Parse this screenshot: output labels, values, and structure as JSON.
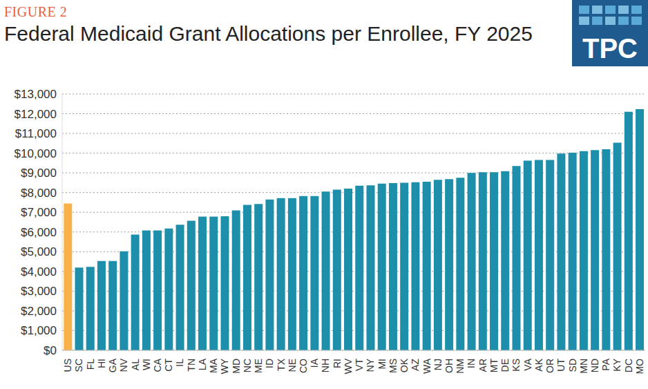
{
  "chart_data": {
    "type": "bar",
    "title": "Federal Medicaid Grant Allocations per Enrollee, FY 2025",
    "annotations": [
      "FIGURE 2",
      "TPC"
    ],
    "categories": [
      "US",
      "SC",
      "FL",
      "HI",
      "GA",
      "NV",
      "AL",
      "WI",
      "CA",
      "CT",
      "IL",
      "TN",
      "LA",
      "MA",
      "WY",
      "MD",
      "NC",
      "ME",
      "ID",
      "TX",
      "NE",
      "CO",
      "IA",
      "NH",
      "RI",
      "WV",
      "VT",
      "NY",
      "MI",
      "MS",
      "OK",
      "AZ",
      "WA",
      "NJ",
      "OH",
      "NM",
      "IN",
      "AR",
      "MT",
      "DE",
      "KS",
      "VA",
      "AK",
      "OR",
      "UT",
      "SD",
      "MN",
      "ND",
      "PA",
      "KY",
      "DC",
      "MO"
    ],
    "values": [
      7450,
      4200,
      4230,
      4530,
      4530,
      5020,
      5870,
      6080,
      6080,
      6180,
      6370,
      6570,
      6780,
      6780,
      6800,
      7100,
      7380,
      7420,
      7650,
      7720,
      7720,
      7820,
      7820,
      8050,
      8150,
      8200,
      8350,
      8370,
      8450,
      8480,
      8500,
      8520,
      8550,
      8650,
      8680,
      8750,
      9000,
      9030,
      9030,
      9080,
      9350,
      9620,
      9650,
      9650,
      9980,
      10020,
      10100,
      10150,
      10200,
      10530,
      12100,
      12230
    ],
    "colors": [
      "#f9b24a",
      "#1d8fab",
      "#1d8fab",
      "#1d8fab",
      "#1d8fab",
      "#1d8fab",
      "#1d8fab",
      "#1d8fab",
      "#1d8fab",
      "#1d8fab",
      "#1d8fab",
      "#1d8fab",
      "#1d8fab",
      "#1d8fab",
      "#1d8fab",
      "#1d8fab",
      "#1d8fab",
      "#1d8fab",
      "#1d8fab",
      "#1d8fab",
      "#1d8fab",
      "#1d8fab",
      "#1d8fab",
      "#1d8fab",
      "#1d8fab",
      "#1d8fab",
      "#1d8fab",
      "#1d8fab",
      "#1d8fab",
      "#1d8fab",
      "#1d8fab",
      "#1d8fab",
      "#1d8fab",
      "#1d8fab",
      "#1d8fab",
      "#1d8fab",
      "#1d8fab",
      "#1d8fab",
      "#1d8fab",
      "#1d8fab",
      "#1d8fab",
      "#1d8fab",
      "#1d8fab",
      "#1d8fab",
      "#1d8fab",
      "#1d8fab",
      "#1d8fab",
      "#1d8fab",
      "#1d8fab",
      "#1d8fab",
      "#1d8fab",
      "#1d8fab"
    ],
    "ylim": [
      0,
      13000
    ],
    "yticks": [
      {
        "value": 0,
        "label": "$0"
      },
      {
        "value": 1000,
        "label": "$1,000"
      },
      {
        "value": 2000,
        "label": "$2,000"
      },
      {
        "value": 3000,
        "label": "$3,000"
      },
      {
        "value": 4000,
        "label": "$4,000"
      },
      {
        "value": 5000,
        "label": "$5,000"
      },
      {
        "value": 6000,
        "label": "$6,000"
      },
      {
        "value": 7000,
        "label": "$7,000"
      },
      {
        "value": 8000,
        "label": "$8,000"
      },
      {
        "value": 9000,
        "label": "$9,000"
      },
      {
        "value": 10000,
        "label": "$10,000"
      },
      {
        "value": 11000,
        "label": "$11,000"
      },
      {
        "value": 12000,
        "label": "$12,000"
      },
      {
        "value": 13000,
        "label": "$13,000"
      }
    ],
    "grid": true
  }
}
